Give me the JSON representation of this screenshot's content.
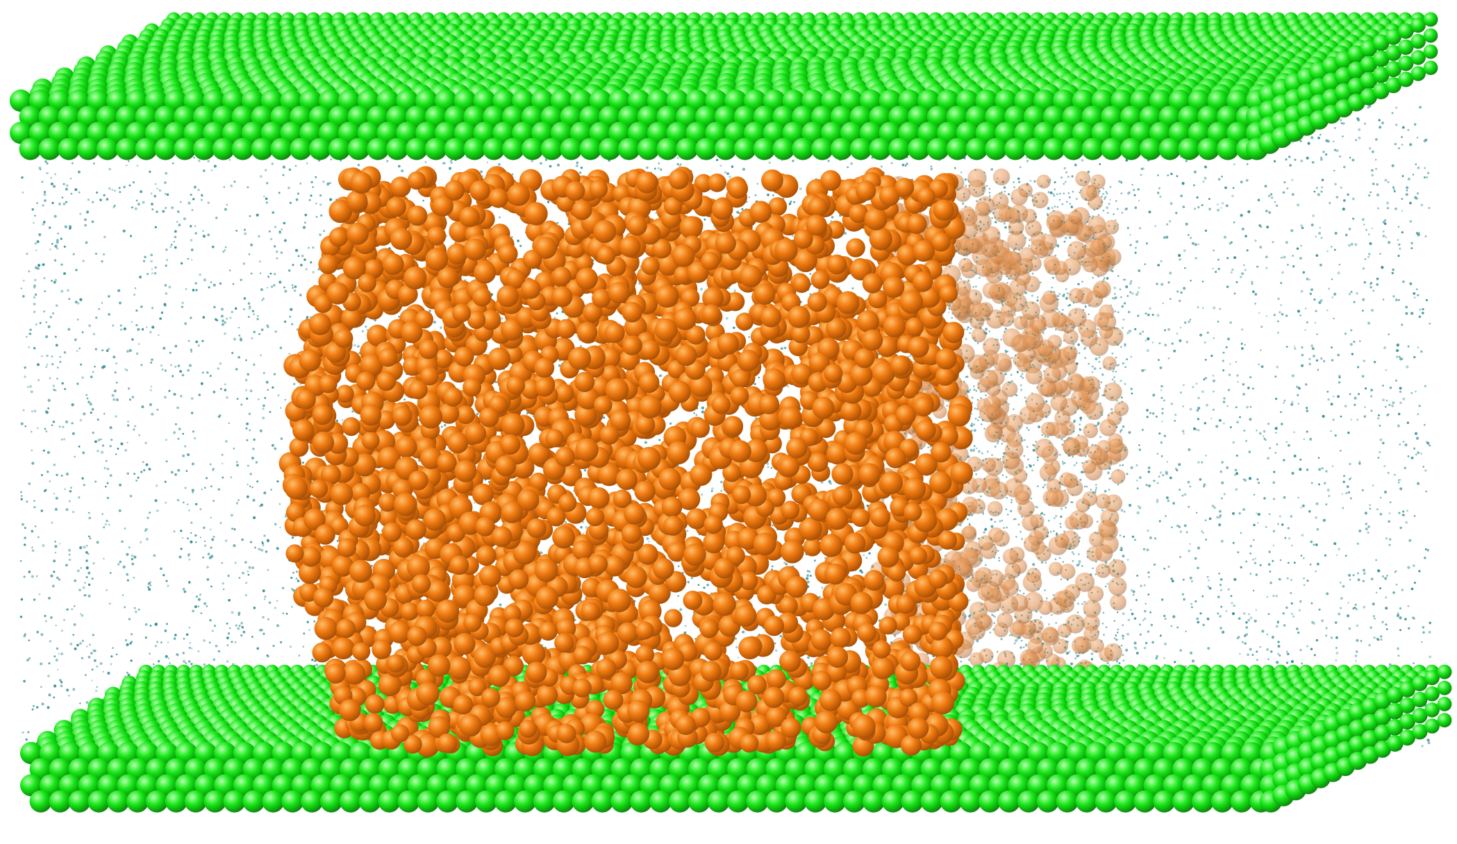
{
  "scene": {
    "colors": {
      "background": "#ffffff",
      "solvent_particle": "#2f8a8f",
      "droplet_atom": "#f07a10",
      "droplet_atom_highlight": "#ffbe6a",
      "droplet_atom_shadow": "#9e4a05",
      "wall_atom": "#18e818",
      "wall_atom_highlight": "#b6ffb0",
      "wall_atom_shadow": "#0a7a0a"
    },
    "elements": {
      "top_wall_layers": 4,
      "bottom_wall_layers": 4
    }
  }
}
